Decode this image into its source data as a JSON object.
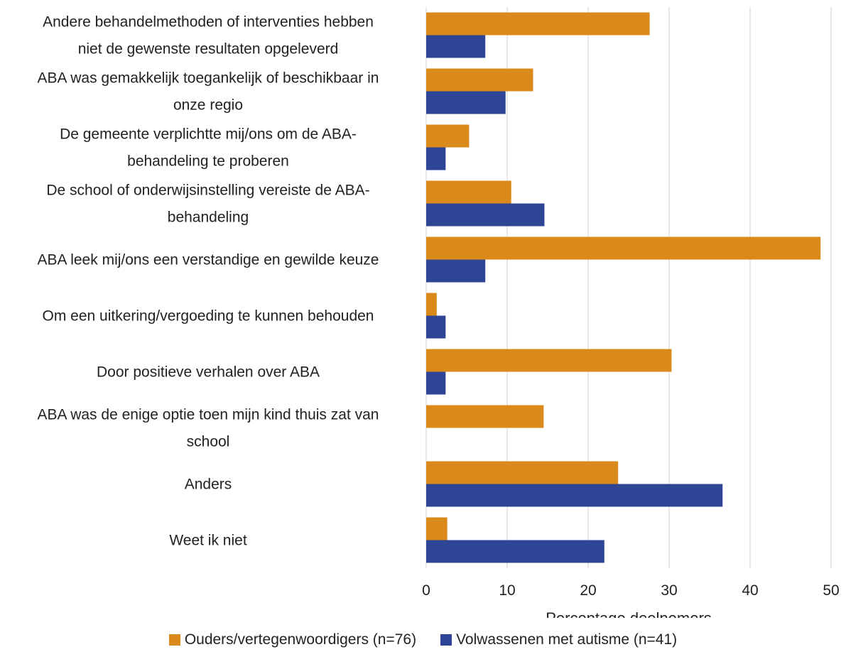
{
  "chart_data": {
    "type": "bar",
    "orientation": "horizontal",
    "categories": [
      [
        "Andere behandelmethoden of interventies hebben",
        "niet de gewenste resultaten opgeleverd"
      ],
      [
        "ABA was gemakkelijk toegankelijk of beschikbaar in",
        "onze regio"
      ],
      [
        "De gemeente verplichtte mij/ons om de ABA-",
        "behandeling te proberen"
      ],
      [
        "De school of onderwijsinstelling vereiste de ABA-",
        "behandeling"
      ],
      [
        "ABA leek mij/ons een verstandige en gewilde keuze"
      ],
      [
        "Om een uitkering/vergoeding te kunnen behouden"
      ],
      [
        "Door positieve verhalen over ABA"
      ],
      [
        "ABA was de enige optie toen mijn kind thuis zat van",
        "school"
      ],
      [
        "Anders"
      ],
      [
        "Weet ik niet"
      ]
    ],
    "series": [
      {
        "name": "Ouders/vertegenwoordigers (n=76)",
        "color": "#D98A1A",
        "values": [
          27.6,
          13.2,
          5.3,
          10.5,
          48.7,
          1.3,
          30.3,
          14.5,
          23.7,
          2.6
        ]
      },
      {
        "name": "Volwassenen met autisme (n=41)",
        "color": "#2E4494",
        "values": [
          7.3,
          9.8,
          2.4,
          14.6,
          7.3,
          2.4,
          2.4,
          0,
          36.6,
          22.0
        ]
      }
    ],
    "xlabel": "Percentage deelnemers",
    "ylabel": "",
    "xlim": [
      0,
      50
    ],
    "xticks": [
      0,
      10,
      20,
      30,
      40,
      50
    ],
    "grid": "vertical",
    "legend": "bottom"
  }
}
